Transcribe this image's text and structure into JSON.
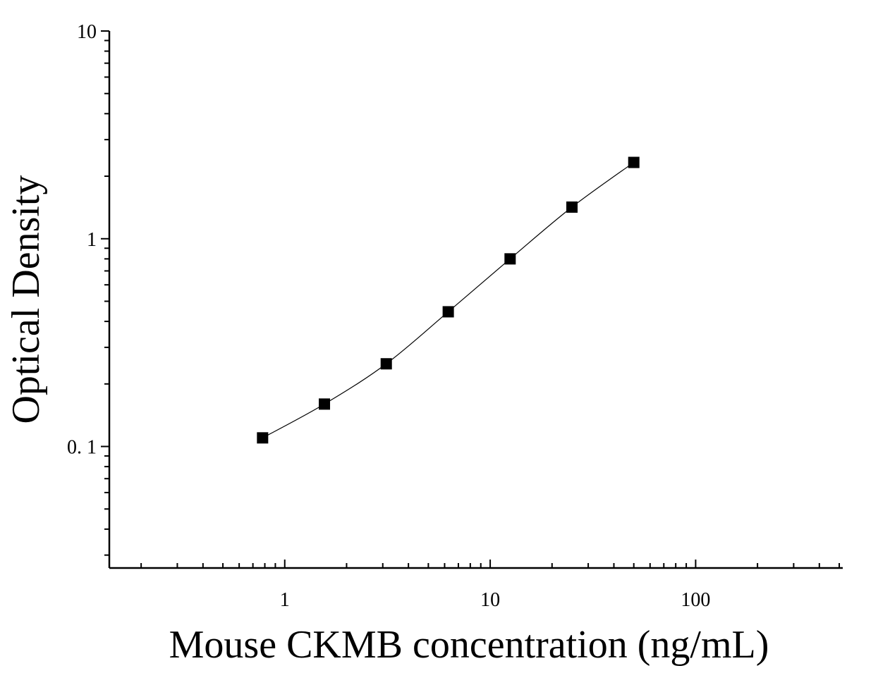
{
  "chart_data": {
    "type": "scatter",
    "xlabel": "Mouse CKMB concentration (ng/mL)",
    "ylabel": "Optical Density",
    "x_scale": "log",
    "y_scale": "log",
    "xlim": [
      0.14,
      520
    ],
    "ylim": [
      0.026,
      10
    ],
    "x_ticks": [
      {
        "value": 1,
        "label": "1"
      },
      {
        "value": 10,
        "label": "10"
      },
      {
        "value": 100,
        "label": "100"
      }
    ],
    "y_ticks": [
      {
        "value": 0.1,
        "label": "0. 1"
      },
      {
        "value": 1,
        "label": "1"
      },
      {
        "value": 10,
        "label": "10"
      }
    ],
    "grid": false,
    "marker": "square",
    "fit_line": true,
    "color": "#000000",
    "series": [
      {
        "x": [
          0.78,
          1.56,
          3.12,
          6.25,
          12.5,
          25,
          50
        ],
        "y": [
          0.11,
          0.16,
          0.25,
          0.445,
          0.8,
          1.42,
          2.33
        ]
      }
    ]
  }
}
